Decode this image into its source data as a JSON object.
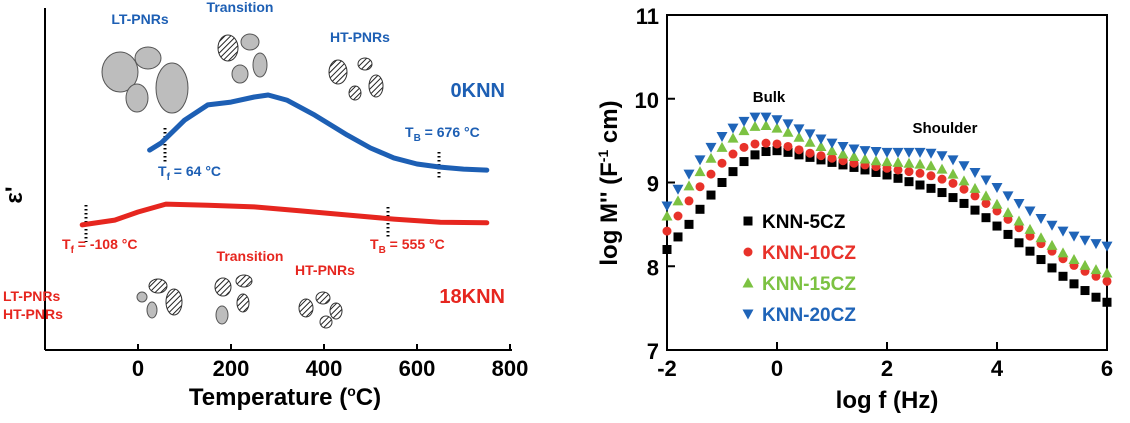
{
  "chart_data": [
    {
      "type": "line",
      "xlabel": {
        "text": "Temperature (",
        "sup": "o",
        "rest": "C)"
      },
      "ylabel": "ε'",
      "xlim": [
        -200,
        800
      ],
      "xticks": [
        0,
        200,
        400,
        600,
        800
      ],
      "ylim": [
        0,
        100
      ],
      "series": [
        {
          "name": "0KNN",
          "color": "#1d5fb4",
          "x": [
            25,
            50,
            100,
            150,
            200,
            250,
            280,
            320,
            380,
            450,
            500,
            550,
            600,
            650,
            700,
            750
          ],
          "values": [
            58.8,
            60.9,
            67.6,
            72.1,
            72.9,
            74.4,
            75,
            73.5,
            69.1,
            63.2,
            59.4,
            56.5,
            54.7,
            53.8,
            53.2,
            52.9
          ]
        },
        {
          "name": "18KNN",
          "color": "#e6261f",
          "x": [
            -120,
            -50,
            0,
            60,
            150,
            250,
            350,
            450,
            550,
            650,
            750
          ],
          "values": [
            36.8,
            38.2,
            40.6,
            42.9,
            42.6,
            42.1,
            40.9,
            39.7,
            38.5,
            37.6,
            37.4
          ]
        }
      ],
      "annotations": [
        {
          "text": "LT-PNRs",
          "color": "#1d5fb4"
        },
        {
          "text": "Transition",
          "color": "#1d5fb4"
        },
        {
          "text": "HT-PNRs",
          "color": "#1d5fb4"
        },
        {
          "text": "T",
          "sub": "f",
          "rest": " = 64 °C",
          "color": "#1d5fb4"
        },
        {
          "text": "T",
          "sub": "B",
          "rest": " = 676 °C",
          "color": "#1d5fb4"
        },
        {
          "text": "T",
          "sub": "f",
          "rest": " = -108 °C",
          "color": "#e6261f"
        },
        {
          "text": "T",
          "sub": "B",
          "rest": " = 555 °C",
          "color": "#e6261f"
        },
        {
          "text": "Transition",
          "color": "#e6261f"
        },
        {
          "text": "LT-PNRs",
          "color": "#e6261f"
        },
        {
          "text": "HT-PNRs",
          "color": "#e6261f"
        },
        {
          "text": "HT-PNRs",
          "color": "#e6261f"
        }
      ]
    },
    {
      "type": "scatter",
      "xlabel": "log f (Hz)",
      "ylabel": {
        "text": "log M'' (F",
        "sup": "-1",
        "rest": " cm)"
      },
      "xlim": [
        -2,
        6
      ],
      "xticks": [
        -2,
        0,
        2,
        4,
        6
      ],
      "ylim": [
        7,
        11
      ],
      "yticks": [
        7,
        8,
        9,
        10,
        11
      ],
      "annotations": [
        "Bulk",
        "Shoulder"
      ],
      "x": [
        -2,
        -1.8,
        -1.6,
        -1.4,
        -1.2,
        -1,
        -0.8,
        -0.6,
        -0.4,
        -0.2,
        0,
        0.2,
        0.4,
        0.6,
        0.8,
        1,
        1.2,
        1.4,
        1.6,
        1.8,
        2,
        2.2,
        2.4,
        2.6,
        2.8,
        3,
        3.2,
        3.4,
        3.6,
        3.8,
        4,
        4.2,
        4.4,
        4.6,
        4.8,
        5,
        5.2,
        5.4,
        5.6,
        5.8,
        6
      ],
      "series": [
        {
          "name": "KNN-5CZ",
          "color": "#000000",
          "marker": "square",
          "values": [
            8.2,
            8.35,
            8.5,
            8.68,
            8.85,
            9.0,
            9.13,
            9.25,
            9.33,
            9.37,
            9.38,
            9.36,
            9.33,
            9.3,
            9.27,
            9.24,
            9.21,
            9.18,
            9.15,
            9.12,
            9.09,
            9.05,
            9.01,
            8.97,
            8.93,
            8.88,
            8.82,
            8.75,
            8.67,
            8.58,
            8.48,
            8.38,
            8.28,
            8.18,
            8.08,
            7.98,
            7.88,
            7.79,
            7.71,
            7.63,
            7.57
          ]
        },
        {
          "name": "KNN-10CZ",
          "color": "#e8322a",
          "marker": "circle",
          "values": [
            8.42,
            8.6,
            8.78,
            8.95,
            9.1,
            9.23,
            9.34,
            9.42,
            9.46,
            9.47,
            9.46,
            9.43,
            9.39,
            9.35,
            9.32,
            9.29,
            9.26,
            9.23,
            9.21,
            9.19,
            9.17,
            9.15,
            9.13,
            9.11,
            9.08,
            9.04,
            8.99,
            8.92,
            8.84,
            8.75,
            8.66,
            8.56,
            8.46,
            8.36,
            8.27,
            8.18,
            8.09,
            8.01,
            7.94,
            7.88,
            7.82
          ]
        },
        {
          "name": "KNN-15CZ",
          "color": "#7cc242",
          "marker": "triangle-up",
          "values": [
            8.6,
            8.78,
            8.96,
            9.13,
            9.29,
            9.42,
            9.53,
            9.62,
            9.67,
            9.68,
            9.65,
            9.6,
            9.54,
            9.48,
            9.43,
            9.38,
            9.34,
            9.31,
            9.28,
            9.26,
            9.25,
            9.24,
            9.23,
            9.22,
            9.2,
            9.16,
            9.1,
            9.02,
            8.93,
            8.84,
            8.74,
            8.64,
            8.54,
            8.44,
            8.34,
            8.25,
            8.16,
            8.08,
            8.01,
            7.96,
            7.92
          ]
        },
        {
          "name": "KNN-20CZ",
          "color": "#1f64b8",
          "marker": "triangle-down",
          "values": [
            8.72,
            8.92,
            9.1,
            9.27,
            9.42,
            9.55,
            9.65,
            9.73,
            9.78,
            9.78,
            9.75,
            9.7,
            9.64,
            9.58,
            9.52,
            9.47,
            9.43,
            9.4,
            9.38,
            9.37,
            9.36,
            9.36,
            9.36,
            9.36,
            9.35,
            9.32,
            9.27,
            9.2,
            9.12,
            9.03,
            8.94,
            8.84,
            8.75,
            8.66,
            8.57,
            8.49,
            8.42,
            8.36,
            8.31,
            8.27,
            8.24
          ]
        }
      ]
    }
  ]
}
